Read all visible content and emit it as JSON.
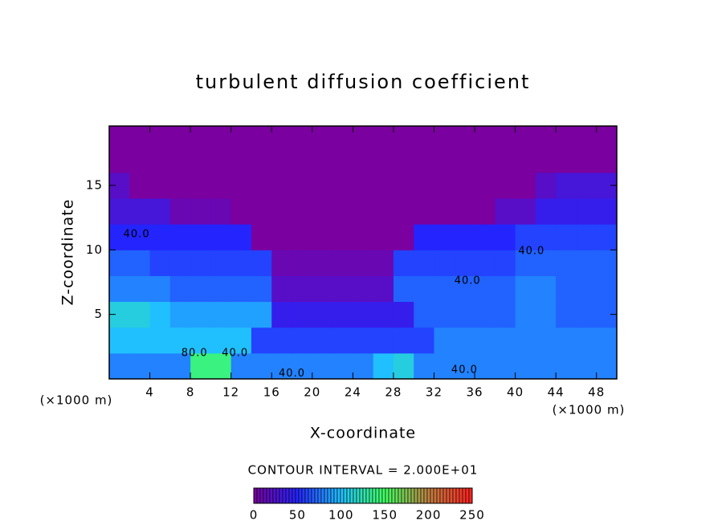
{
  "chart_data": {
    "type": "contour",
    "title": "turbulent diffusion coefficient",
    "x_label": "X-coordinate",
    "y_label": "Z-coordinate",
    "x_unit": "(×1000 m)",
    "contour_note": "CONTOUR INTERVAL = 2.000E+01",
    "xlim": [
      0,
      50
    ],
    "ylim": [
      0,
      19.6
    ],
    "xticks": [
      4,
      8,
      12,
      16,
      20,
      24,
      28,
      32,
      36,
      40,
      44,
      48
    ],
    "yticks": [
      5,
      10,
      15
    ],
    "x": [
      1,
      3,
      5,
      7,
      9,
      11,
      13,
      15,
      17,
      19,
      21,
      23,
      25,
      27,
      29,
      31,
      33,
      35,
      37,
      39,
      41,
      43,
      45,
      47,
      49
    ],
    "y": [
      1,
      3,
      5,
      7,
      9,
      11,
      13,
      15,
      17,
      19
    ],
    "z": [
      [
        80,
        80,
        80,
        80,
        140,
        140,
        80,
        80,
        80,
        80,
        80,
        80,
        80,
        100,
        110,
        80,
        80,
        80,
        80,
        80,
        80,
        80,
        80,
        80,
        80
      ],
      [
        100,
        100,
        100,
        100,
        100,
        100,
        100,
        60,
        60,
        60,
        60,
        60,
        60,
        60,
        60,
        60,
        80,
        80,
        80,
        80,
        80,
        80,
        80,
        80,
        80
      ],
      [
        110,
        110,
        100,
        90,
        90,
        90,
        90,
        90,
        40,
        40,
        40,
        40,
        40,
        40,
        40,
        70,
        70,
        70,
        70,
        70,
        80,
        80,
        70,
        70,
        70
      ],
      [
        80,
        80,
        80,
        70,
        70,
        70,
        70,
        70,
        20,
        20,
        20,
        20,
        20,
        20,
        70,
        70,
        70,
        70,
        70,
        70,
        80,
        80,
        70,
        70,
        70
      ],
      [
        70,
        70,
        60,
        60,
        60,
        60,
        60,
        60,
        10,
        10,
        10,
        10,
        10,
        10,
        60,
        60,
        60,
        60,
        60,
        60,
        70,
        70,
        70,
        70,
        70
      ],
      [
        50,
        50,
        50,
        50,
        50,
        50,
        50,
        0,
        0,
        0,
        0,
        0,
        0,
        0,
        0,
        50,
        50,
        50,
        50,
        50,
        60,
        60,
        60,
        60,
        60
      ],
      [
        30,
        30,
        30,
        10,
        10,
        10,
        0,
        0,
        0,
        0,
        0,
        0,
        0,
        0,
        0,
        0,
        0,
        0,
        0,
        20,
        20,
        40,
        40,
        40,
        40
      ],
      [
        20,
        0,
        0,
        0,
        0,
        0,
        0,
        0,
        0,
        0,
        0,
        0,
        0,
        0,
        0,
        0,
        0,
        0,
        0,
        0,
        0,
        20,
        30,
        30,
        30
      ],
      [
        0,
        0,
        0,
        0,
        0,
        0,
        0,
        0,
        0,
        0,
        0,
        0,
        0,
        0,
        0,
        0,
        0,
        0,
        0,
        0,
        0,
        0,
        0,
        0,
        0
      ],
      [
        0,
        0,
        0,
        0,
        0,
        0,
        0,
        0,
        0,
        0,
        0,
        0,
        0,
        0,
        0,
        0,
        0,
        0,
        0,
        0,
        0,
        0,
        0,
        0,
        0
      ]
    ],
    "colorscale": [
      [
        0,
        "#7a00a0"
      ],
      [
        50,
        "#2424ff"
      ],
      [
        100,
        "#20c0ff"
      ],
      [
        150,
        "#40ff60"
      ],
      [
        200,
        "#c08040"
      ],
      [
        250,
        "#ff2020"
      ]
    ],
    "colorbar_lim": [
      0,
      250
    ],
    "colorbar_ticks": [
      0,
      50,
      100,
      150,
      200,
      250
    ],
    "annotations": [
      {
        "text": "40.0",
        "x": 2.7,
        "y": 11.2
      },
      {
        "text": "40.0",
        "x": 41.6,
        "y": 9.9
      },
      {
        "text": "40.0",
        "x": 35.3,
        "y": 7.6
      },
      {
        "text": "80.0",
        "x": 8.4,
        "y": 2.0
      },
      {
        "text": "40.0",
        "x": 12.4,
        "y": 2.0
      },
      {
        "text": "40.0",
        "x": 18.0,
        "y": 0.4
      },
      {
        "text": "40.0",
        "x": 35.0,
        "y": 0.7
      }
    ]
  }
}
